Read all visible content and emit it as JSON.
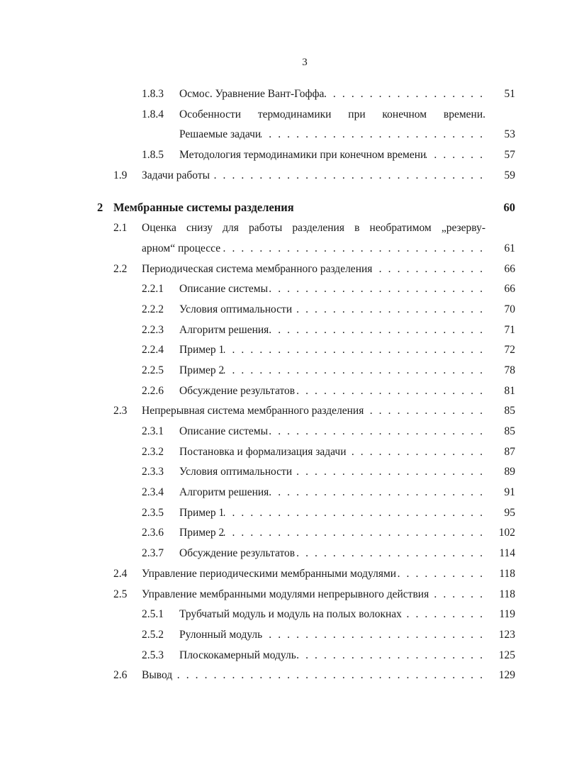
{
  "page_number": "3",
  "entries": [
    {
      "level": 2,
      "num": "1.8.3",
      "title": "Осмос. Уравнение Вант-Гоффа",
      "page": "51"
    },
    {
      "level": 2,
      "num": "1.8.4",
      "title_line1": "Особенности термодинамики при конечном времени.",
      "title": "Решаемые задачи",
      "page": "53"
    },
    {
      "level": 2,
      "num": "1.8.5",
      "title": "Методология термодинамики при конечном времени",
      "page": "57"
    },
    {
      "level": 1,
      "num": "1.9",
      "title": "Задачи работы",
      "page": "59"
    },
    {
      "level": 0,
      "num": "2",
      "title": "Мембранные системы разделения",
      "page": "60"
    },
    {
      "level": 1,
      "num": "2.1",
      "title_line1": "Оценка снизу для работы разделения в необратимом „резерву-",
      "title": "арном“ процессе",
      "page": "61"
    },
    {
      "level": 1,
      "num": "2.2",
      "title": "Периодическая система мембранного разделения",
      "page": "66"
    },
    {
      "level": 2,
      "num": "2.2.1",
      "title": "Описание системы",
      "page": "66"
    },
    {
      "level": 2,
      "num": "2.2.2",
      "title": "Условия оптимальности",
      "page": "70"
    },
    {
      "level": 2,
      "num": "2.2.3",
      "title": "Алгоритм решения",
      "page": "71"
    },
    {
      "level": 2,
      "num": "2.2.4",
      "title": "Пример 1",
      "page": "72"
    },
    {
      "level": 2,
      "num": "2.2.5",
      "title": "Пример 2",
      "page": "78"
    },
    {
      "level": 2,
      "num": "2.2.6",
      "title": "Обсуждение результатов",
      "page": "81"
    },
    {
      "level": 1,
      "num": "2.3",
      "title": "Непрерывная система мембранного разделения",
      "page": "85"
    },
    {
      "level": 2,
      "num": "2.3.1",
      "title": "Описание системы",
      "page": "85"
    },
    {
      "level": 2,
      "num": "2.3.2",
      "title": "Постановка и формализация задачи",
      "page": "87"
    },
    {
      "level": 2,
      "num": "2.3.3",
      "title": "Условия оптимальности",
      "page": "89"
    },
    {
      "level": 2,
      "num": "2.3.4",
      "title": "Алгоритм решения",
      "page": "91"
    },
    {
      "level": 2,
      "num": "2.3.5",
      "title": "Пример 1",
      "page": "95"
    },
    {
      "level": 2,
      "num": "2.3.6",
      "title": "Пример 2",
      "page": "102"
    },
    {
      "level": 2,
      "num": "2.3.7",
      "title": "Обсуждение результатов",
      "page": "114"
    },
    {
      "level": 1,
      "num": "2.4",
      "title": "Управление периодическими мембранными модулями",
      "page": "118"
    },
    {
      "level": 1,
      "num": "2.5",
      "title": "Управление мембранными модулями непрерывного действия",
      "page": "118"
    },
    {
      "level": 2,
      "num": "2.5.1",
      "title": "Трубчатый модуль и модуль на полых волокнах",
      "page": "119"
    },
    {
      "level": 2,
      "num": "2.5.2",
      "title": "Рулонный модуль",
      "page": "123"
    },
    {
      "level": 2,
      "num": "2.5.3",
      "title": "Плоскокамерный модуль",
      "page": "125"
    },
    {
      "level": 1,
      "num": "2.6",
      "title": "Вывод",
      "page": "129"
    }
  ]
}
